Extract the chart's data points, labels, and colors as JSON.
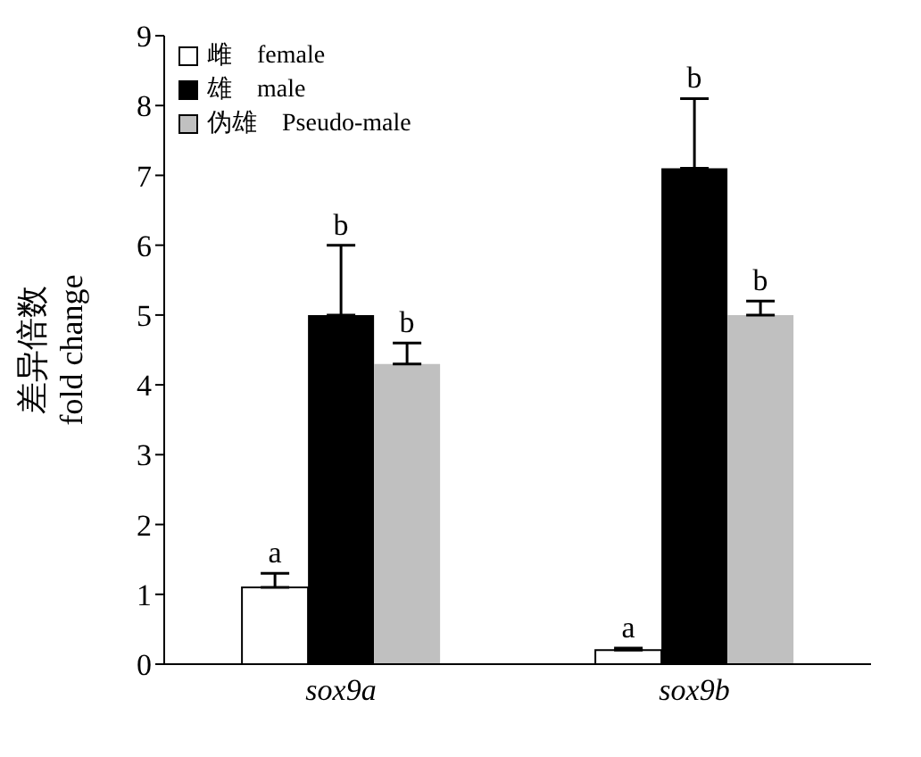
{
  "chart_data": {
    "type": "bar",
    "ylabel": "差异倍数\nfold change",
    "categories": [
      "sox9a",
      "sox9b"
    ],
    "series": [
      {
        "name": "雌　female",
        "color": "#ffffff",
        "values": [
          1.1,
          0.2
        ],
        "errors": [
          [
            1.1,
            1.3
          ],
          [
            0.2,
            0.23
          ]
        ],
        "value_labels": [
          "a",
          "a"
        ]
      },
      {
        "name": "雄　male",
        "color": "#000000",
        "values": [
          5.0,
          7.1
        ],
        "errors": [
          [
            5.0,
            6.0
          ],
          [
            7.1,
            8.1
          ]
        ],
        "value_labels": [
          "b",
          "b"
        ]
      },
      {
        "name": "伪雄　Pseudo-male",
        "color": "#c0c0c0",
        "values": [
          4.3,
          5.0
        ],
        "errors": [
          [
            4.3,
            4.6
          ],
          [
            5.0,
            5.2
          ]
        ],
        "value_labels": [
          "b",
          "b"
        ]
      }
    ],
    "ylim": [
      0,
      9
    ],
    "yticks": [
      0,
      1,
      2,
      3,
      4,
      5,
      6,
      7,
      8,
      9
    ],
    "grid": false,
    "legend": "top left"
  }
}
